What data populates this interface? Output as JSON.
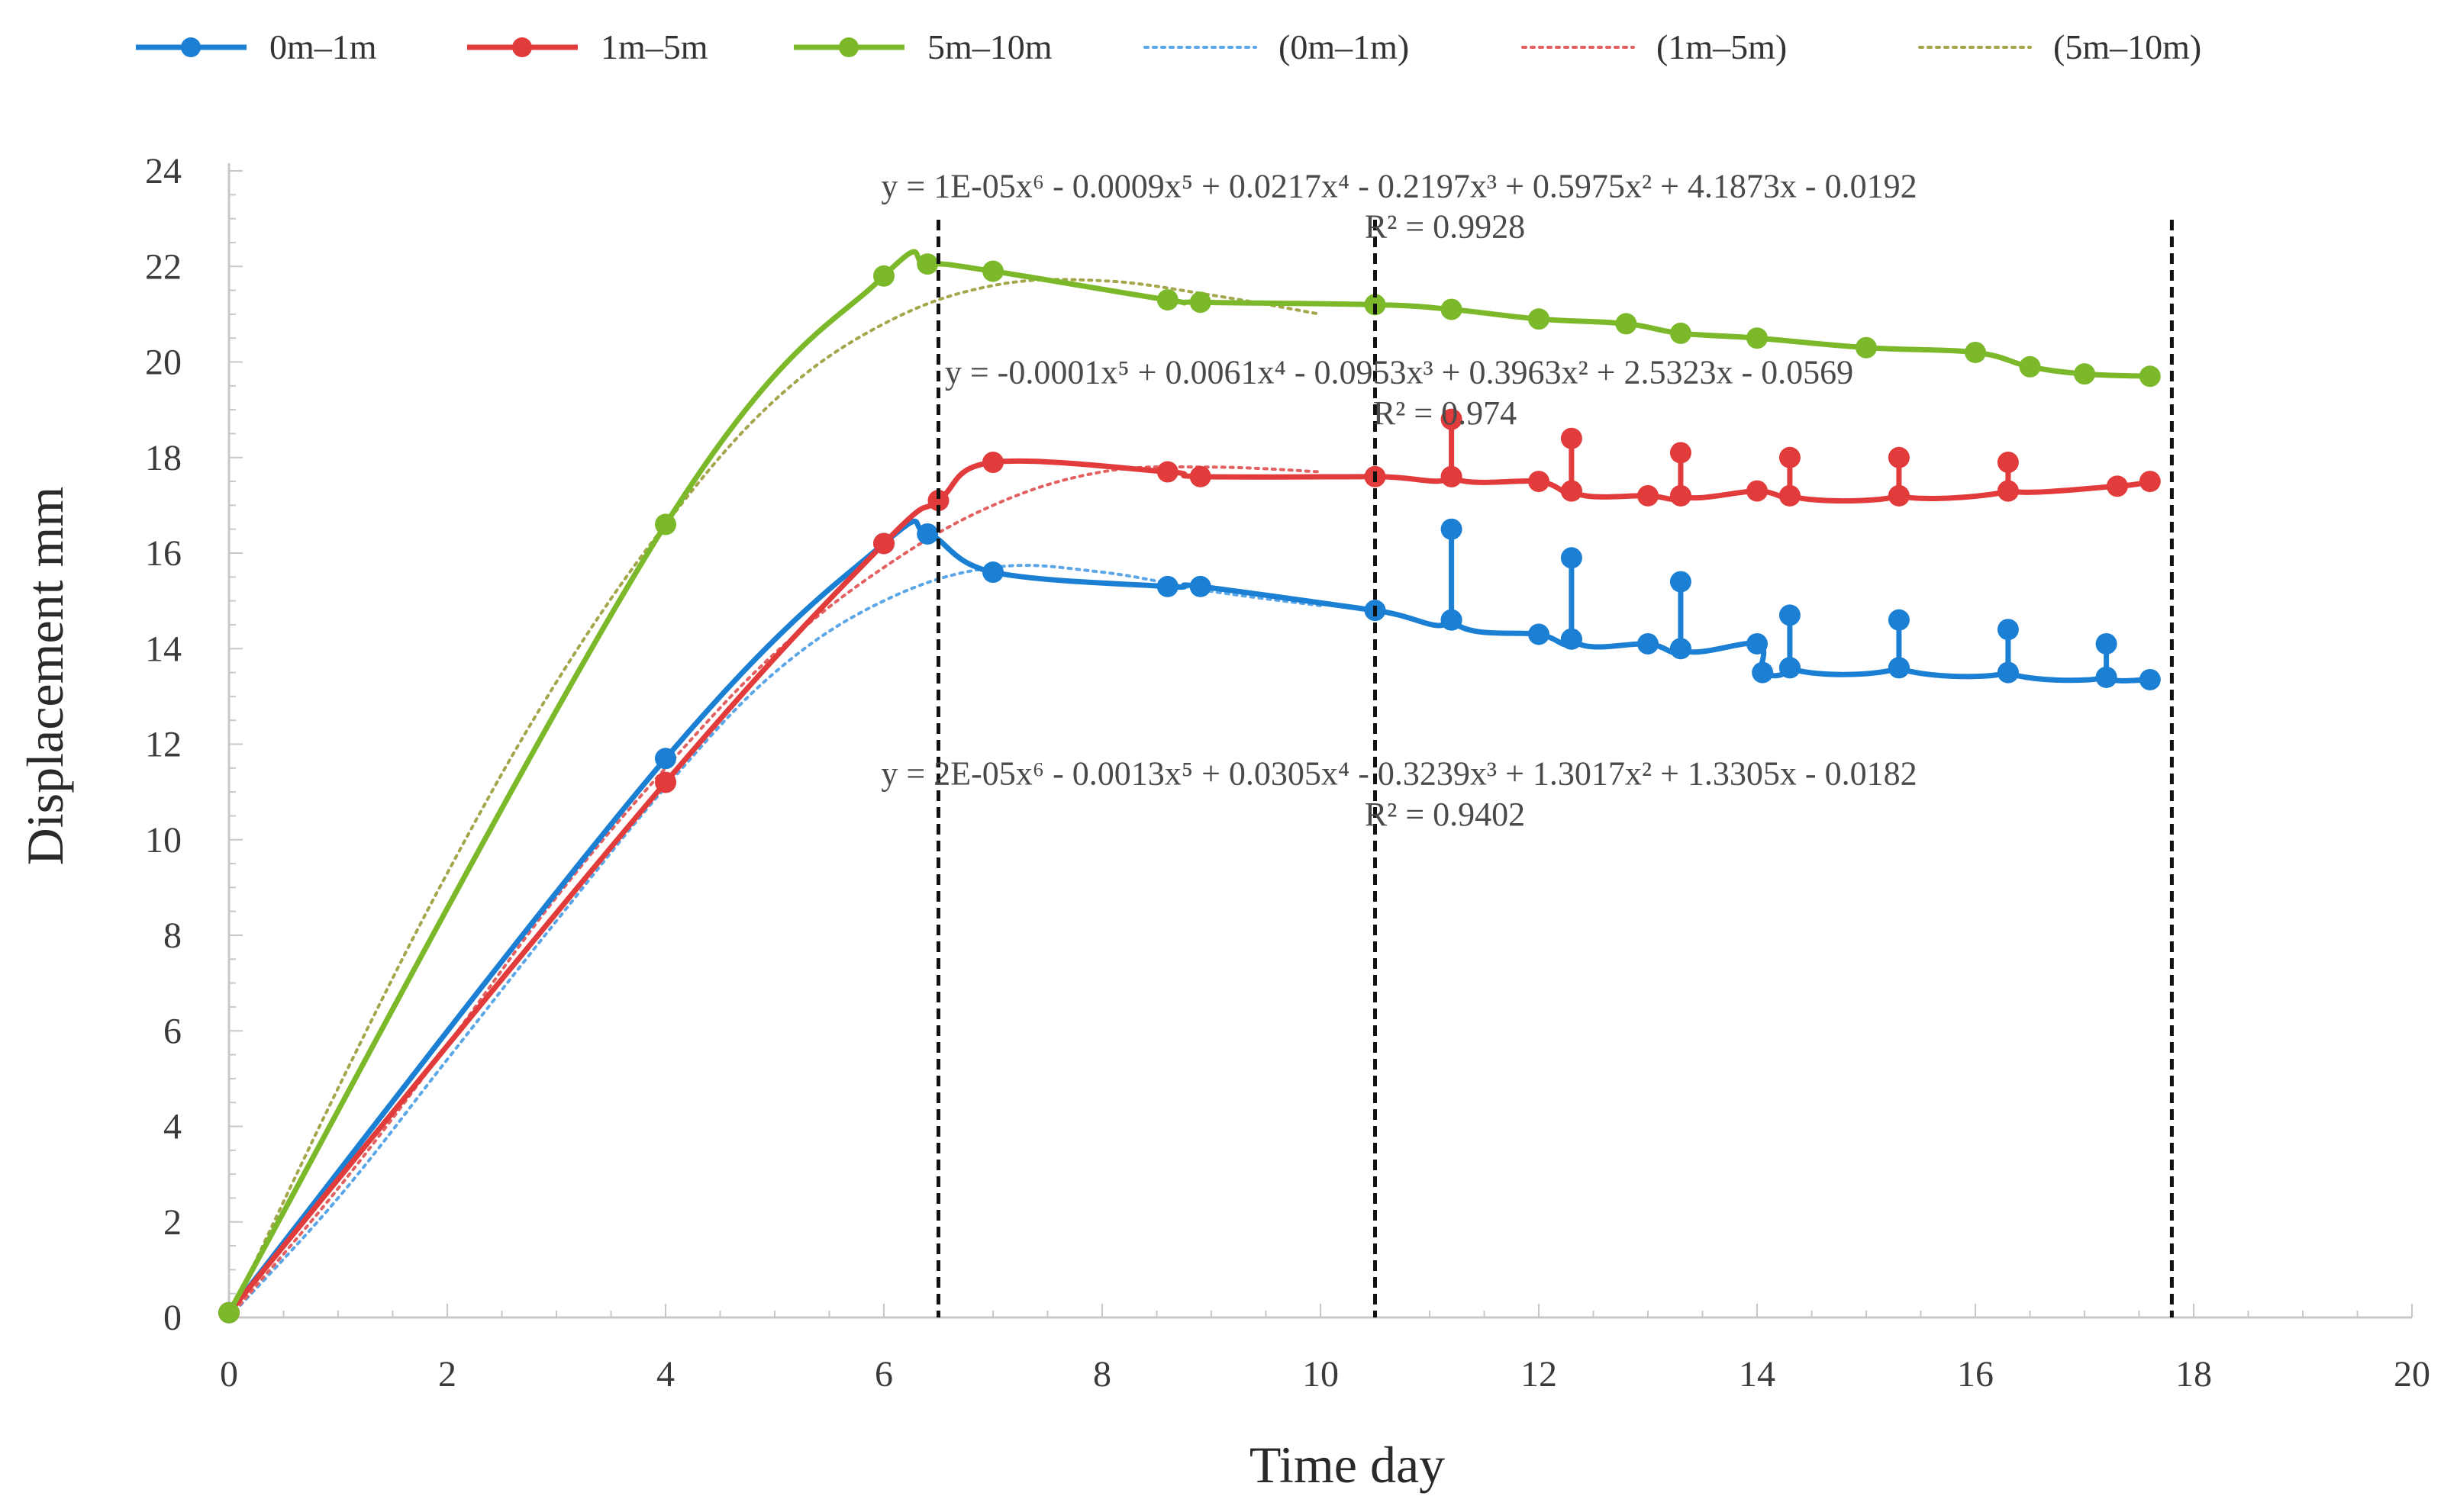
{
  "chart_data": {
    "type": "line",
    "title": "",
    "xlabel": "Time day",
    "ylabel": "Displacement mm",
    "xlim": [
      0,
      20
    ],
    "ylim": [
      0,
      24
    ],
    "xticks": [
      0,
      2,
      4,
      6,
      8,
      10,
      12,
      14,
      16,
      18,
      20
    ],
    "yticks": [
      0,
      2,
      4,
      6,
      8,
      10,
      12,
      14,
      16,
      18,
      20,
      22,
      24
    ],
    "xtick_labels": [
      "0",
      "2",
      "4",
      "6",
      "8",
      "10",
      "12",
      "14",
      "16",
      "18",
      "20"
    ],
    "ytick_labels": [
      "0",
      "2",
      "4",
      "6",
      "8",
      "10",
      "12",
      "14",
      "16",
      "18",
      "20",
      "22",
      "24"
    ],
    "legend_position": "top",
    "stage_dividers_x": [
      6.5,
      10.5,
      17.8
    ],
    "series": [
      {
        "name": "0m–1m",
        "style": "solid-marker",
        "color": "#1b7fd4",
        "points": [
          [
            0,
            0.1
          ],
          [
            4,
            11.7
          ],
          [
            6,
            16.2
          ],
          [
            6.4,
            16.4
          ],
          [
            7,
            15.6
          ],
          [
            8.6,
            15.3
          ],
          [
            8.9,
            15.3
          ],
          [
            10.5,
            14.8
          ],
          [
            11.2,
            14.6
          ],
          [
            11.2,
            16.5
          ],
          [
            11.2,
            14.6
          ],
          [
            12,
            14.3
          ],
          [
            12.3,
            14.2
          ],
          [
            12.3,
            15.9
          ],
          [
            12.3,
            14.2
          ],
          [
            13,
            14.1
          ],
          [
            13.3,
            14.0
          ],
          [
            13.3,
            15.4
          ],
          [
            13.3,
            14.0
          ],
          [
            14,
            14.1
          ],
          [
            14.05,
            13.5
          ],
          [
            14.3,
            13.6
          ],
          [
            14.3,
            14.7
          ],
          [
            14.3,
            13.6
          ],
          [
            15.3,
            13.6
          ],
          [
            15.3,
            14.6
          ],
          [
            15.3,
            13.6
          ],
          [
            16.3,
            13.5
          ],
          [
            16.3,
            14.4
          ],
          [
            16.3,
            13.5
          ],
          [
            17.2,
            13.4
          ],
          [
            17.2,
            14.1
          ],
          [
            17.2,
            13.4
          ],
          [
            17.6,
            13.35
          ]
        ]
      },
      {
        "name": "1m–5m",
        "style": "solid-marker",
        "color": "#e23b3b",
        "points": [
          [
            0,
            0.1
          ],
          [
            4,
            11.2
          ],
          [
            6,
            16.2
          ],
          [
            6.5,
            17.1
          ],
          [
            7,
            17.9
          ],
          [
            8.6,
            17.7
          ],
          [
            8.9,
            17.6
          ],
          [
            10.5,
            17.6
          ],
          [
            11.2,
            17.6
          ],
          [
            11.2,
            18.8
          ],
          [
            11.2,
            17.6
          ],
          [
            12,
            17.5
          ],
          [
            12.3,
            17.3
          ],
          [
            12.3,
            18.4
          ],
          [
            12.3,
            17.3
          ],
          [
            13,
            17.2
          ],
          [
            13.3,
            17.2
          ],
          [
            13.3,
            18.1
          ],
          [
            13.3,
            17.2
          ],
          [
            14,
            17.3
          ],
          [
            14.3,
            17.2
          ],
          [
            14.3,
            18.0
          ],
          [
            14.3,
            17.2
          ],
          [
            15.3,
            17.2
          ],
          [
            15.3,
            18.0
          ],
          [
            15.3,
            17.2
          ],
          [
            16.3,
            17.3
          ],
          [
            16.3,
            17.9
          ],
          [
            16.3,
            17.3
          ],
          [
            17.3,
            17.4
          ],
          [
            17.6,
            17.5
          ]
        ]
      },
      {
        "name": "5m–10m",
        "style": "solid-marker",
        "color": "#7cb92a",
        "points": [
          [
            0,
            0.1
          ],
          [
            4,
            16.6
          ],
          [
            6,
            21.8
          ],
          [
            6.4,
            22.05
          ],
          [
            7,
            21.9
          ],
          [
            8.6,
            21.3
          ],
          [
            8.9,
            21.25
          ],
          [
            10.5,
            21.2
          ],
          [
            11.2,
            21.1
          ],
          [
            12,
            20.9
          ],
          [
            12.8,
            20.8
          ],
          [
            13.3,
            20.6
          ],
          [
            14,
            20.5
          ],
          [
            15,
            20.3
          ],
          [
            16,
            20.2
          ],
          [
            16.5,
            19.9
          ],
          [
            17,
            19.75
          ],
          [
            17.6,
            19.7
          ]
        ]
      },
      {
        "name": "(0m–1m)",
        "style": "dotted",
        "color": "#5aa6e6",
        "points": [
          [
            0,
            0
          ],
          [
            1,
            2.5
          ],
          [
            2,
            5.4
          ],
          [
            3,
            8.3
          ],
          [
            4,
            11.1
          ],
          [
            5,
            13.5
          ],
          [
            6,
            15.0
          ],
          [
            7,
            15.7
          ],
          [
            8,
            15.6
          ],
          [
            9,
            15.2
          ],
          [
            10,
            14.9
          ]
        ]
      },
      {
        "name": "(1m–5m)",
        "style": "dotted",
        "color": "#e26060",
        "points": [
          [
            0,
            0
          ],
          [
            1,
            2.7
          ],
          [
            2,
            5.7
          ],
          [
            3,
            8.8
          ],
          [
            4,
            11.5
          ],
          [
            5,
            13.9
          ],
          [
            6,
            15.7
          ],
          [
            7,
            17.0
          ],
          [
            8,
            17.7
          ],
          [
            9,
            17.8
          ],
          [
            10,
            17.7
          ]
        ]
      },
      {
        "name": "(5m–10m)",
        "style": "dotted",
        "color": "#a3a64a",
        "points": [
          [
            0,
            0
          ],
          [
            1,
            4.8
          ],
          [
            2,
            9.3
          ],
          [
            3,
            13.3
          ],
          [
            4,
            16.6
          ],
          [
            5,
            19.2
          ],
          [
            6,
            20.8
          ],
          [
            7,
            21.6
          ],
          [
            8,
            21.7
          ],
          [
            9,
            21.4
          ],
          [
            10,
            21.0
          ]
        ]
      }
    ],
    "annotations": [
      {
        "id": "eq_green",
        "equation": "y = 1E-05x⁶ - 0.0009x⁵ + 0.0217x⁴ - 0.2197x³ + 0.5975x² + 4.1873x - 0.0192",
        "r2": "R² = 0.9928",
        "anchor": [
          11.0,
          23.45
        ],
        "r2_anchor": [
          11.0,
          22.6
        ]
      },
      {
        "id": "eq_red",
        "equation": "y = -0.0001x⁵ + 0.0061x⁴ - 0.0953x³ + 0.3963x² + 2.5323x - 0.0569",
        "r2": "R² = 0.974",
        "anchor": [
          11.0,
          19.55
        ],
        "r2_anchor": [
          11.0,
          18.7
        ]
      },
      {
        "id": "eq_blue",
        "equation": "y = 2E-05x⁶ - 0.0013x⁵ + 0.0305x⁴ - 0.3239x³ + 1.3017x² + 1.3305x - 0.0182",
        "r2": "R² = 0.9402",
        "anchor": [
          11.0,
          11.15
        ],
        "r2_anchor": [
          11.0,
          10.3
        ]
      }
    ]
  }
}
